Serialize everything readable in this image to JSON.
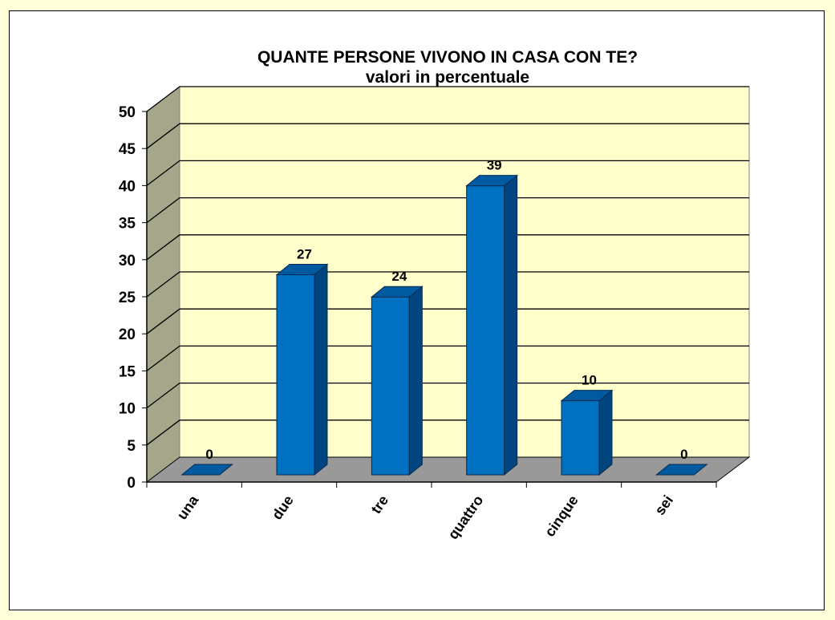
{
  "chart_data": {
    "type": "bar",
    "style": "3d-column",
    "title": "QUANTE PERSONE VIVONO IN CASA CON TE?",
    "subtitle": "valori in percentuale",
    "xlabel": "",
    "ylabel": "",
    "categories": [
      "una",
      "due",
      "tre",
      "quattro",
      "cinque",
      "sei"
    ],
    "values": [
      0,
      27,
      24,
      39,
      10,
      0
    ],
    "data_labels": [
      "0",
      "27",
      "24",
      "39",
      "10",
      "0"
    ],
    "ylim": [
      0,
      50
    ],
    "yticks": [
      0,
      5,
      10,
      15,
      20,
      25,
      30,
      35,
      40,
      45,
      50
    ],
    "grid": true,
    "legend": null,
    "colors": {
      "bar_front": "#0070c0",
      "bar_top": "#005aa0",
      "bar_side": "#004580",
      "back_wall": "#ffffcc",
      "side_wall": "#a6a68a",
      "floor": "#999999",
      "page_background": "#ffffd9"
    }
  }
}
